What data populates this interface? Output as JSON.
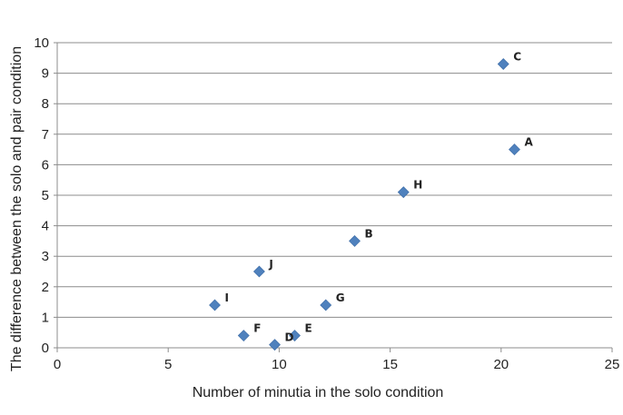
{
  "chart_data": {
    "type": "scatter",
    "title": "",
    "xlabel": "Number of minutia in the solo condition",
    "ylabel": "The difference between the solo and pair condition",
    "xlim": [
      0,
      25
    ],
    "ylim": [
      0,
      10
    ],
    "xticks": [
      0,
      5,
      10,
      15,
      20,
      25
    ],
    "yticks": [
      0,
      1,
      2,
      3,
      4,
      5,
      6,
      7,
      8,
      9,
      10
    ],
    "grid": "horizontal",
    "legend": "none",
    "marker": "diamond",
    "marker_color": "#4f81bd",
    "points": [
      {
        "label": "A",
        "x": 20.6,
        "y": 6.5
      },
      {
        "label": "B",
        "x": 13.4,
        "y": 3.5
      },
      {
        "label": "C",
        "x": 20.1,
        "y": 9.3
      },
      {
        "label": "D",
        "x": 9.8,
        "y": 0.1
      },
      {
        "label": "E",
        "x": 10.7,
        "y": 0.4
      },
      {
        "label": "F",
        "x": 8.4,
        "y": 0.4
      },
      {
        "label": "G",
        "x": 12.1,
        "y": 1.4
      },
      {
        "label": "H",
        "x": 15.6,
        "y": 5.1
      },
      {
        "label": "I",
        "x": 7.1,
        "y": 1.4
      },
      {
        "label": "J",
        "x": 9.1,
        "y": 2.5
      }
    ]
  }
}
